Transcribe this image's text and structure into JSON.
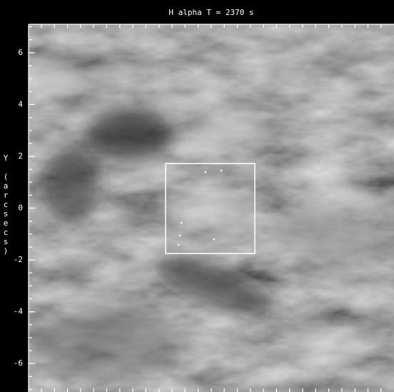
{
  "chart_data": {
    "type": "image",
    "title": "H alpha T = 2370 s",
    "y_label": "Y (arcsecs)",
    "ylim": [
      -7.1,
      7.1
    ],
    "yticks": [
      -6,
      -4,
      -2,
      0,
      2,
      4,
      6
    ]
  }
}
